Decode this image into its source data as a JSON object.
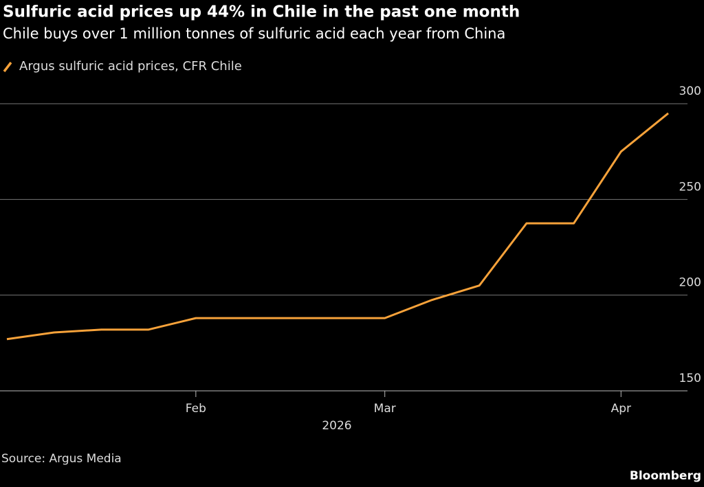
{
  "chart_data": {
    "type": "line",
    "title": "Sulfuric acid prices up 44% in Chile in the past one month",
    "subtitle": "Chile buys over 1 million tonnes of sulfuric acid each year from China",
    "x_label": "2026",
    "source": "Source: Argus Media",
    "brand": "Bloomberg",
    "categories": [
      null,
      null,
      null,
      null,
      "Feb",
      null,
      null,
      null,
      "Mar",
      null,
      null,
      null,
      null,
      "Apr",
      null
    ],
    "series": [
      {
        "name": "Argus sulfuric acid prices, CFR Chile",
        "color": "#f7a23a",
        "values": [
          177,
          180.5,
          182,
          182,
          188,
          188,
          188,
          188,
          188,
          197.5,
          205,
          237.5,
          237.5,
          275,
          295
        ]
      }
    ],
    "ylim": [
      150,
      300
    ],
    "yticks": [
      150,
      200,
      250,
      300
    ],
    "grid": true
  }
}
